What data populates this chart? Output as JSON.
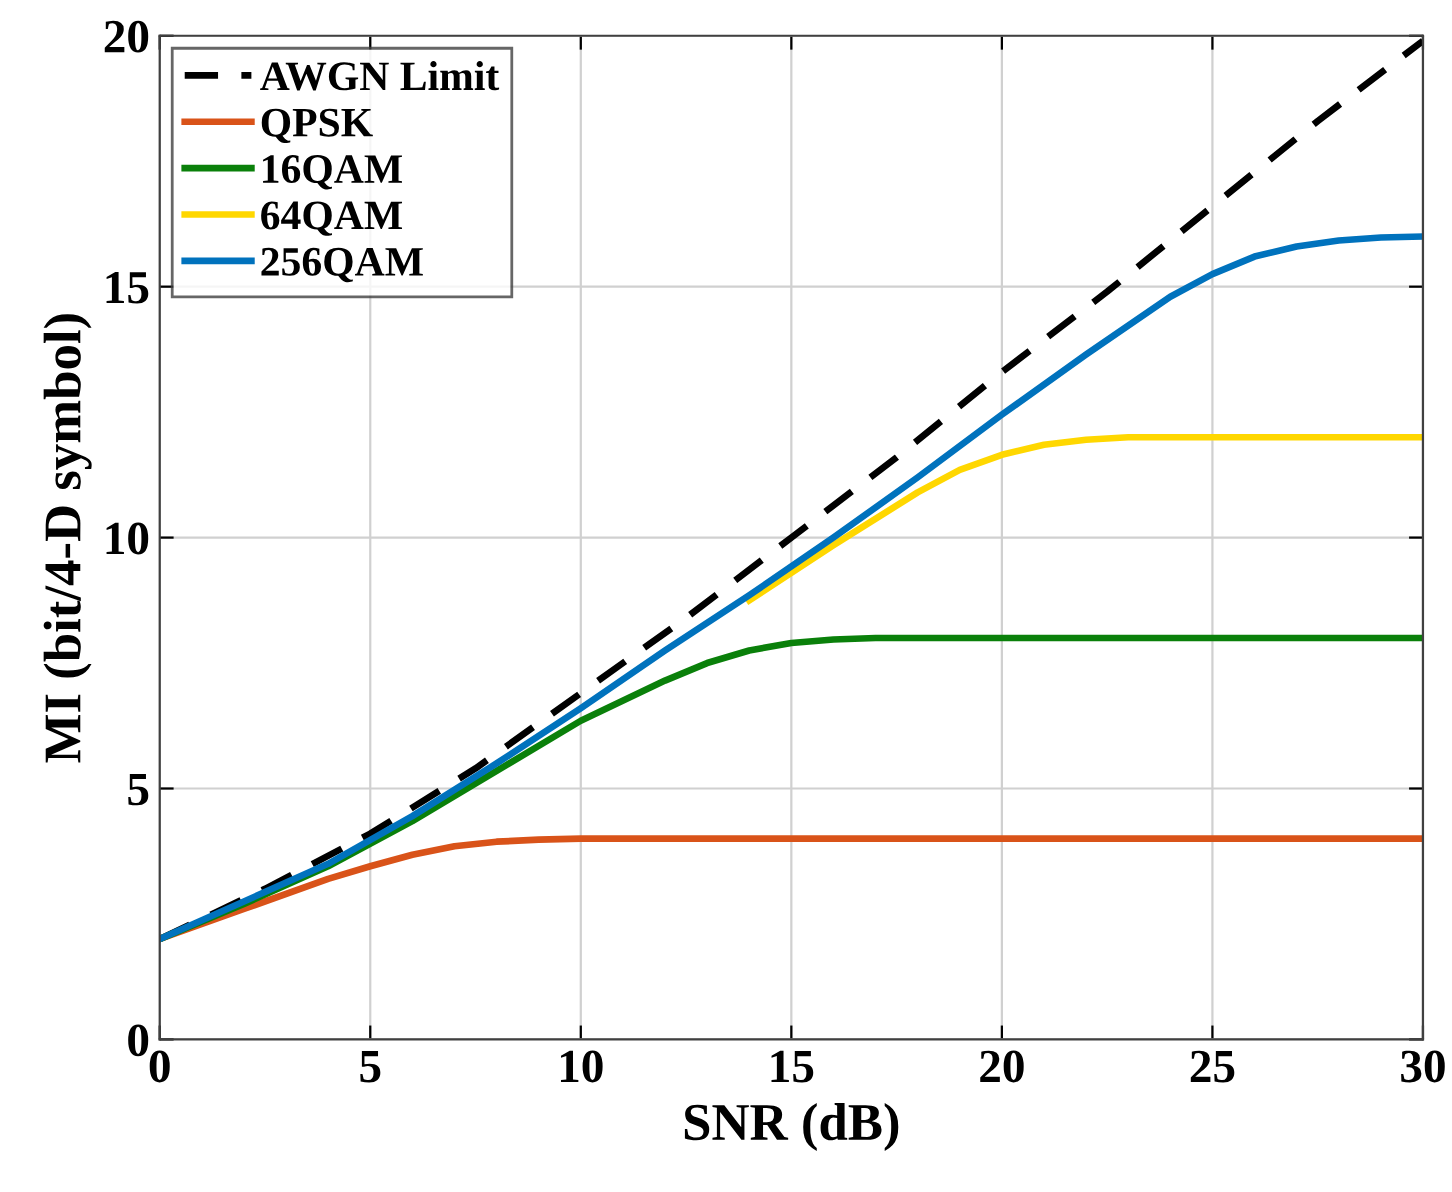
{
  "chart_data": {
    "type": "line",
    "xlabel": "SNR (dB)",
    "ylabel": "MI (bit/4-D symbol)",
    "xlim": [
      0,
      30
    ],
    "ylim": [
      0,
      20
    ],
    "xticks": [
      0,
      5,
      10,
      15,
      20,
      25,
      30
    ],
    "yticks": [
      0,
      5,
      10,
      15,
      20
    ],
    "grid": true,
    "legend": "top left",
    "marker": "none",
    "series": [
      {
        "name": "AWGN Limit",
        "color": "#000000",
        "line_style": "dashed",
        "x": [
          0,
          2.5,
          5,
          7.5,
          10,
          12.5,
          15,
          17.5,
          20,
          22.5,
          25,
          27.5,
          30
        ],
        "values": [
          2,
          3.0,
          4.1,
          5.4,
          6.9,
          8.4,
          10.0,
          11.6,
          13.3,
          14.9,
          16.6,
          18.3,
          19.9
        ]
      },
      {
        "name": "QPSK",
        "color": "#d95319",
        "line_style": "solid",
        "x": [
          0,
          2,
          4,
          5,
          6,
          7,
          8,
          9,
          10,
          12,
          30
        ],
        "values": [
          2,
          2.6,
          3.2,
          3.45,
          3.68,
          3.85,
          3.94,
          3.98,
          4.0,
          4.0,
          4.0
        ]
      },
      {
        "name": "16QAM",
        "color": "#0a800a",
        "line_style": "solid",
        "x": [
          0,
          2,
          4,
          6,
          8,
          10,
          12,
          13,
          14,
          15,
          16,
          17,
          18,
          30
        ],
        "values": [
          2,
          2.7,
          3.45,
          4.35,
          5.35,
          6.35,
          7.15,
          7.5,
          7.75,
          7.9,
          7.97,
          8.0,
          8.0,
          8.0
        ]
      },
      {
        "name": "64QAM",
        "color": "#ffd700",
        "line_style": "solid",
        "x": [
          14,
          16,
          18,
          19,
          20,
          21,
          22,
          23,
          24,
          30
        ],
        "values": [
          8.75,
          9.85,
          10.9,
          11.35,
          11.65,
          11.85,
          11.95,
          12.0,
          12.0,
          12.0
        ]
      },
      {
        "name": "256QAM",
        "color": "#0072bd",
        "line_style": "solid",
        "x": [
          0,
          2,
          4,
          6,
          8,
          10,
          12,
          14,
          16,
          18,
          20,
          22,
          24,
          25,
          26,
          27,
          28,
          29,
          30
        ],
        "values": [
          2,
          2.75,
          3.5,
          4.45,
          5.5,
          6.6,
          7.75,
          8.85,
          10.0,
          11.2,
          12.45,
          13.65,
          14.8,
          15.25,
          15.6,
          15.8,
          15.92,
          15.98,
          16.0
        ]
      }
    ]
  }
}
